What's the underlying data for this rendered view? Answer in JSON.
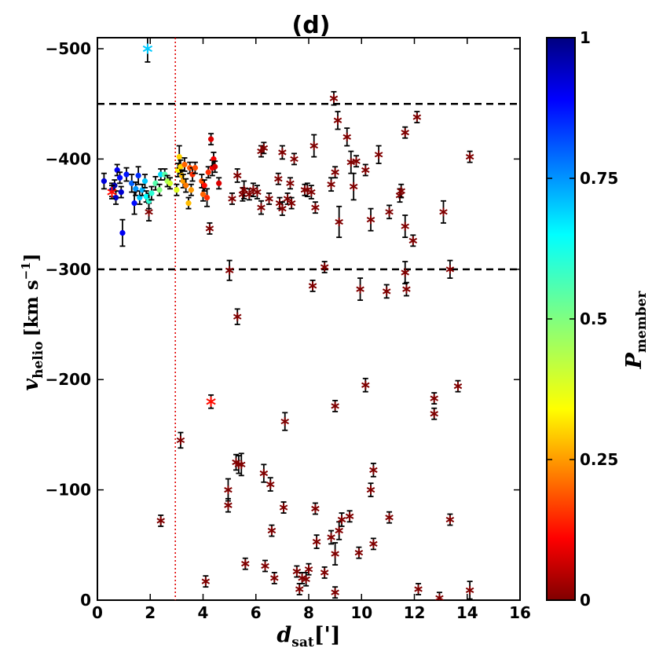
{
  "chart_data": {
    "type": "scatter",
    "title": "(d)",
    "xlabel": "d",
    "xlabel_sub": "sat",
    "xlabel_unit": "[']",
    "ylabel": "v",
    "ylabel_sub": "helio",
    "ylabel_unit": "[km s",
    "ylabel_exp": "−1",
    "ylabel_close": "]",
    "colorbar_label": "P",
    "colorbar_sub": "member",
    "xlim": [
      0,
      16
    ],
    "ylim": [
      0,
      -510
    ],
    "x_ticks": [
      0,
      2,
      4,
      6,
      8,
      10,
      12,
      14,
      16
    ],
    "x_tick_labels": [
      "0",
      "2",
      "4",
      "6",
      "8",
      "10",
      "12",
      "14",
      "16"
    ],
    "y_ticks": [
      0,
      -100,
      -200,
      -300,
      -400,
      -500
    ],
    "y_tick_labels": [
      "0",
      "−100",
      "−200",
      "−300",
      "−400",
      "−500"
    ],
    "colorbar_ticks": [
      0,
      0.25,
      0.5,
      0.75,
      1
    ],
    "colorbar_tick_labels": [
      "0",
      "0.25",
      "0.5",
      "0.75",
      "1"
    ],
    "hlines": [
      -300,
      -450
    ],
    "vline": 2.95,
    "members": [
      [
        0.25,
        -380,
        0.92,
        7
      ],
      [
        0.55,
        -372,
        0.95,
        6
      ],
      [
        0.65,
        -376,
        0.96,
        5
      ],
      [
        0.7,
        -365,
        0.94,
        6
      ],
      [
        0.75,
        -390,
        0.9,
        5
      ],
      [
        0.85,
        -383,
        0.88,
        5
      ],
      [
        0.9,
        -370,
        0.93,
        5
      ],
      [
        0.95,
        -333,
        0.9,
        12
      ],
      [
        1.1,
        -386,
        0.87,
        6
      ],
      [
        1.3,
        -378,
        0.8,
        8
      ],
      [
        1.4,
        -360,
        0.88,
        10
      ],
      [
        1.45,
        -373,
        0.75,
        6
      ],
      [
        1.55,
        -385,
        0.85,
        8
      ],
      [
        1.6,
        -365,
        0.7,
        6
      ],
      [
        1.7,
        -372,
        0.72,
        5
      ],
      [
        1.8,
        -380,
        0.7,
        6
      ],
      [
        1.85,
        -366,
        0.65,
        5
      ],
      [
        1.95,
        -362,
        0.6,
        7
      ],
      [
        2.05,
        -369,
        0.6,
        6
      ],
      [
        2.2,
        -378,
        0.55,
        6
      ],
      [
        2.35,
        -372,
        0.5,
        5
      ],
      [
        2.4,
        -386,
        0.68,
        5
      ],
      [
        2.55,
        -386,
        0.55,
        5
      ],
      [
        2.65,
        -380,
        0.45,
        5
      ],
      [
        2.75,
        -378,
        0.4,
        5
      ],
      [
        3.0,
        -372,
        0.38,
        5
      ],
      [
        3.05,
        -390,
        0.33,
        6
      ],
      [
        3.1,
        -402,
        0.3,
        10
      ],
      [
        3.15,
        -393,
        0.3,
        6
      ],
      [
        3.2,
        -385,
        0.28,
        5
      ],
      [
        3.25,
        -380,
        0.25,
        6
      ],
      [
        3.3,
        -395,
        0.2,
        6
      ],
      [
        3.35,
        -376,
        0.22,
        6
      ],
      [
        3.45,
        -360,
        0.28,
        5
      ],
      [
        3.5,
        -392,
        0.18,
        5
      ],
      [
        3.55,
        -372,
        0.25,
        5
      ],
      [
        3.6,
        -386,
        0.15,
        6
      ],
      [
        3.7,
        -392,
        0.18,
        5
      ],
      [
        3.95,
        -380,
        0.18,
        6
      ],
      [
        4.0,
        -368,
        0.2,
        6
      ],
      [
        4.05,
        -376,
        0.12,
        5
      ],
      [
        4.15,
        -365,
        0.15,
        8
      ],
      [
        4.2,
        -388,
        0.15,
        5
      ],
      [
        4.3,
        -418,
        0.08,
        5
      ],
      [
        4.35,
        -392,
        0.1,
        7
      ],
      [
        4.4,
        -400,
        0.1,
        6
      ],
      [
        4.45,
        -393,
        0.08,
        5
      ],
      [
        4.6,
        -378,
        0.08,
        5
      ]
    ],
    "specials": [
      [
        1.9,
        -500,
        0.7,
        12
      ],
      [
        0.55,
        -370,
        0.12,
        6
      ],
      [
        4.3,
        -180,
        0.12,
        6
      ]
    ],
    "nonmembers": [
      [
        1.95,
        -352,
        8
      ],
      [
        2.4,
        -72,
        5
      ],
      [
        3.15,
        -145,
        7
      ],
      [
        4.1,
        -17,
        5
      ],
      [
        4.25,
        -337,
        5
      ],
      [
        4.95,
        -100,
        10
      ],
      [
        4.95,
        -86,
        6
      ],
      [
        5.0,
        -299,
        9
      ],
      [
        5.1,
        -364,
        5
      ],
      [
        5.25,
        -125,
        7
      ],
      [
        5.3,
        -385,
        6
      ],
      [
        5.3,
        -257,
        7
      ],
      [
        5.35,
        -123,
        8
      ],
      [
        5.45,
        -123,
        10
      ],
      [
        5.5,
        -368,
        6
      ],
      [
        5.55,
        -372,
        8
      ],
      [
        5.6,
        -33,
        5
      ],
      [
        5.75,
        -368,
        5
      ],
      [
        5.9,
        -372,
        6
      ],
      [
        6.05,
        -370,
        6
      ],
      [
        6.2,
        -356,
        6
      ],
      [
        6.2,
        -407,
        5
      ],
      [
        6.3,
        -410,
        5
      ],
      [
        6.3,
        -115,
        8
      ],
      [
        6.35,
        -31,
        5
      ],
      [
        6.5,
        -364,
        5
      ],
      [
        6.55,
        -105,
        6
      ],
      [
        6.6,
        -63,
        5
      ],
      [
        6.7,
        -20,
        5
      ],
      [
        6.85,
        -382,
        5
      ],
      [
        6.9,
        -360,
        5
      ],
      [
        7.0,
        -355,
        6
      ],
      [
        7.0,
        -406,
        6
      ],
      [
        7.05,
        -84,
        5
      ],
      [
        7.1,
        -162,
        8
      ],
      [
        7.2,
        -364,
        5
      ],
      [
        7.3,
        -378,
        5
      ],
      [
        7.35,
        -360,
        5
      ],
      [
        7.45,
        -400,
        5
      ],
      [
        7.55,
        -26,
        5
      ],
      [
        7.65,
        -10,
        5
      ],
      [
        7.75,
        -20,
        5
      ],
      [
        7.85,
        -372,
        5
      ],
      [
        7.9,
        -19,
        6
      ],
      [
        7.95,
        -372,
        6
      ],
      [
        8.0,
        -28,
        5
      ],
      [
        8.1,
        -370,
        6
      ],
      [
        8.15,
        -285,
        5
      ],
      [
        8.2,
        -412,
        10
      ],
      [
        8.25,
        -356,
        5
      ],
      [
        8.25,
        -83,
        5
      ],
      [
        8.3,
        -53,
        6
      ],
      [
        8.6,
        -25,
        5
      ],
      [
        8.6,
        -302,
        5
      ],
      [
        8.85,
        -377,
        6
      ],
      [
        8.85,
        -57,
        6
      ],
      [
        8.95,
        -455,
        6
      ],
      [
        9.0,
        -388,
        5
      ],
      [
        9.0,
        -176,
        5
      ],
      [
        9.0,
        -42,
        10
      ],
      [
        9.0,
        -7,
        5
      ],
      [
        9.1,
        -435,
        8
      ],
      [
        9.15,
        -343,
        14
      ],
      [
        9.15,
        -63,
        8
      ],
      [
        9.25,
        -73,
        6
      ],
      [
        9.45,
        -420,
        8
      ],
      [
        9.55,
        -76,
        5
      ],
      [
        9.6,
        -397,
        10
      ],
      [
        9.7,
        -375,
        12
      ],
      [
        9.8,
        -398,
        5
      ],
      [
        9.9,
        -43,
        5
      ],
      [
        9.95,
        -282,
        10
      ],
      [
        10.15,
        -390,
        5
      ],
      [
        10.15,
        -195,
        6
      ],
      [
        10.35,
        -345,
        10
      ],
      [
        10.35,
        -100,
        6
      ],
      [
        10.45,
        -51,
        5
      ],
      [
        10.45,
        -118,
        6
      ],
      [
        10.65,
        -404,
        8
      ],
      [
        10.95,
        -280,
        6
      ],
      [
        11.05,
        -352,
        6
      ],
      [
        11.05,
        -75,
        5
      ],
      [
        11.45,
        -367,
        6
      ],
      [
        11.5,
        -371,
        6
      ],
      [
        11.65,
        -424,
        5
      ],
      [
        11.65,
        -339,
        10
      ],
      [
        11.65,
        -297,
        10
      ],
      [
        11.7,
        -282,
        6
      ],
      [
        11.95,
        -326,
        5
      ],
      [
        12.1,
        -438,
        5
      ],
      [
        12.15,
        -10,
        5
      ],
      [
        12.75,
        -183,
        5
      ],
      [
        12.75,
        -169,
        5
      ],
      [
        12.95,
        -2,
        5
      ],
      [
        13.1,
        -352,
        10
      ],
      [
        13.35,
        -300,
        8
      ],
      [
        13.35,
        -73,
        5
      ],
      [
        13.65,
        -194,
        5
      ],
      [
        14.1,
        -402,
        5
      ],
      [
        14.1,
        -9,
        8
      ]
    ]
  }
}
